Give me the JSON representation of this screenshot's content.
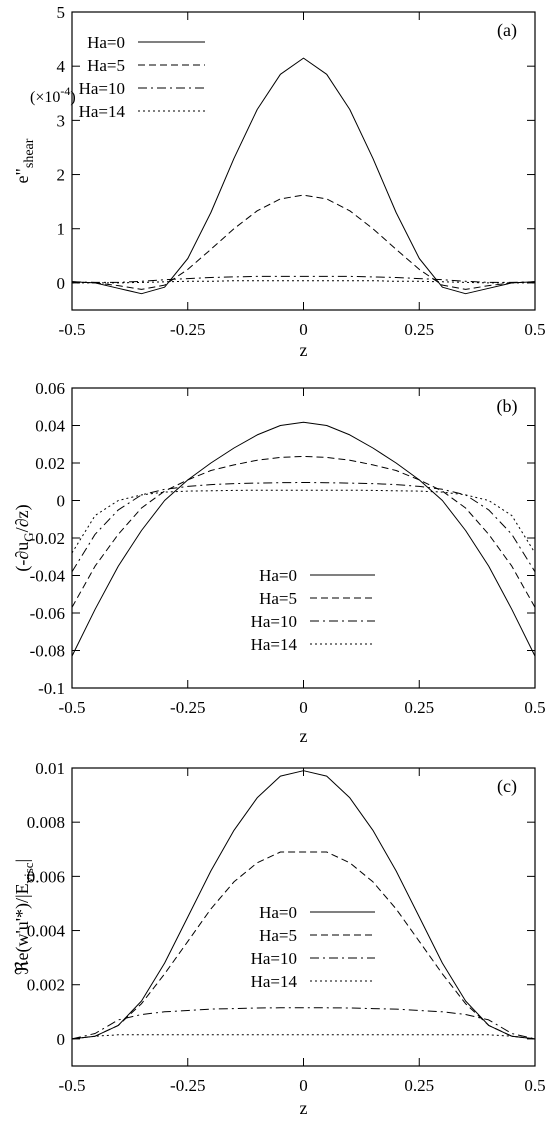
{
  "chart_data": [
    {
      "type": "line",
      "panel_label": "(a)",
      "xlabel": "z",
      "ylabel": "e\"shear",
      "ylabel_main": "e\"",
      "ylabel_sub": "shear",
      "multiplier_label": "(×10",
      "multiplier_exp": "-4",
      "multiplier_close": ")",
      "xlim": [
        -0.5,
        0.5
      ],
      "ylim": [
        -0.5,
        5
      ],
      "xticks": [
        -0.5,
        -0.25,
        0,
        0.25,
        0.5
      ],
      "xtick_labels": [
        "-0.5",
        "-0.25",
        "0",
        "0.25",
        "0.5"
      ],
      "yticks": [
        0,
        1,
        2,
        3,
        4,
        5
      ],
      "ytick_labels": [
        "0",
        "1",
        "2",
        "3",
        "4",
        "5"
      ],
      "legend": "top-left",
      "grid": false,
      "x": [
        -0.5,
        -0.45,
        -0.4,
        -0.35,
        -0.3,
        -0.25,
        -0.2,
        -0.15,
        -0.1,
        -0.05,
        0,
        0.05,
        0.1,
        0.15,
        0.2,
        0.25,
        0.3,
        0.35,
        0.4,
        0.45,
        0.5
      ],
      "series": [
        {
          "name": "Ha=0",
          "values": [
            0.02,
            0.0,
            -0.1,
            -0.2,
            -0.08,
            0.45,
            1.3,
            2.3,
            3.2,
            3.85,
            4.15,
            3.85,
            3.2,
            2.3,
            1.3,
            0.45,
            -0.08,
            -0.2,
            -0.1,
            0.0,
            0.02
          ]
        },
        {
          "name": "Ha=5",
          "values": [
            0.02,
            0.0,
            -0.05,
            -0.12,
            -0.04,
            0.25,
            0.62,
            1.0,
            1.33,
            1.55,
            1.62,
            1.55,
            1.33,
            1.0,
            0.62,
            0.25,
            -0.04,
            -0.12,
            -0.05,
            0.0,
            0.02
          ]
        },
        {
          "name": "Ha=10",
          "values": [
            0.02,
            0.01,
            0.01,
            0.03,
            0.06,
            0.08,
            0.1,
            0.11,
            0.12,
            0.12,
            0.12,
            0.12,
            0.12,
            0.11,
            0.1,
            0.08,
            0.06,
            0.03,
            0.01,
            0.01,
            0.02
          ]
        },
        {
          "name": "Ha=14",
          "values": [
            0.0,
            0.0,
            0.0,
            0.01,
            0.02,
            0.03,
            0.03,
            0.04,
            0.04,
            0.04,
            0.04,
            0.04,
            0.04,
            0.04,
            0.03,
            0.03,
            0.02,
            0.01,
            0.0,
            0.0,
            0.0
          ]
        }
      ]
    },
    {
      "type": "line",
      "panel_label": "(b)",
      "xlabel": "z",
      "ylabel": "(-∂uG/∂z)",
      "ylabel_pre": "(-∂u",
      "ylabel_sub": "G",
      "ylabel_post": "/∂z)",
      "xlim": [
        -0.5,
        0.5
      ],
      "ylim": [
        -0.1,
        0.06
      ],
      "xticks": [
        -0.5,
        -0.25,
        0,
        0.25,
        0.5
      ],
      "xtick_labels": [
        "-0.5",
        "-0.25",
        "0",
        "0.25",
        "0.5"
      ],
      "yticks": [
        -0.1,
        -0.08,
        -0.06,
        -0.04,
        -0.02,
        0,
        0.02,
        0.04,
        0.06
      ],
      "ytick_labels": [
        "-0.1",
        "-0.08",
        "-0.06",
        "-0.04",
        "-0.02",
        "0",
        "0.02",
        "0.04",
        "0.06"
      ],
      "legend": "bottom-center",
      "grid": false,
      "x": [
        -0.5,
        -0.45,
        -0.4,
        -0.35,
        -0.3,
        -0.25,
        -0.2,
        -0.15,
        -0.1,
        -0.05,
        0,
        0.05,
        0.1,
        0.15,
        0.2,
        0.25,
        0.3,
        0.35,
        0.4,
        0.45,
        0.5
      ],
      "series": [
        {
          "name": "Ha=0",
          "values": [
            -0.083,
            -0.058,
            -0.035,
            -0.016,
            0.0,
            0.011,
            0.02,
            0.028,
            0.035,
            0.04,
            0.0417,
            0.04,
            0.035,
            0.028,
            0.02,
            0.011,
            0.0,
            -0.016,
            -0.035,
            -0.058,
            -0.083
          ]
        },
        {
          "name": "Ha=5",
          "values": [
            -0.057,
            -0.035,
            -0.018,
            -0.004,
            0.005,
            0.011,
            0.016,
            0.019,
            0.0215,
            0.023,
            0.0235,
            0.023,
            0.0215,
            0.019,
            0.016,
            0.011,
            0.005,
            -0.004,
            -0.018,
            -0.035,
            -0.057
          ]
        },
        {
          "name": "Ha=10",
          "values": [
            -0.038,
            -0.018,
            -0.005,
            0.003,
            0.006,
            0.0075,
            0.0085,
            0.009,
            0.0093,
            0.0095,
            0.0096,
            0.0095,
            0.0093,
            0.009,
            0.0085,
            0.0075,
            0.006,
            0.003,
            -0.005,
            -0.018,
            -0.038
          ]
        },
        {
          "name": "Ha=14",
          "values": [
            -0.028,
            -0.008,
            0.0,
            0.003,
            0.0045,
            0.005,
            0.0052,
            0.0054,
            0.0055,
            0.0055,
            0.0055,
            0.0055,
            0.0055,
            0.0054,
            0.0052,
            0.005,
            0.0045,
            0.003,
            0.0,
            -0.008,
            -0.028
          ]
        }
      ]
    },
    {
      "type": "line",
      "panel_label": "(c)",
      "xlabel": "z",
      "ylabel": "ℜe(w'u'*)/|Evisc|",
      "ylabel_pre": "ℜe(w'u'*)/|E",
      "ylabel_sub": "visc",
      "ylabel_post": "|",
      "xlim": [
        -0.5,
        0.5
      ],
      "ylim": [
        -0.001,
        0.01
      ],
      "xticks": [
        -0.5,
        -0.25,
        0,
        0.25,
        0.5
      ],
      "xtick_labels": [
        "-0.5",
        "-0.25",
        "0",
        "0.25",
        "0.5"
      ],
      "yticks": [
        0,
        0.002,
        0.004,
        0.006,
        0.008,
        0.01
      ],
      "ytick_labels": [
        "0",
        "0.002",
        "0.004",
        "0.006",
        "0.008",
        "0.01"
      ],
      "legend": "center",
      "grid": false,
      "x": [
        -0.5,
        -0.45,
        -0.4,
        -0.35,
        -0.3,
        -0.25,
        -0.2,
        -0.15,
        -0.1,
        -0.05,
        0,
        0.05,
        0.1,
        0.15,
        0.2,
        0.25,
        0.3,
        0.35,
        0.4,
        0.45,
        0.5
      ],
      "series": [
        {
          "name": "Ha=0",
          "values": [
            0.0,
            0.0001,
            0.0005,
            0.0014,
            0.0028,
            0.0045,
            0.0062,
            0.0077,
            0.0089,
            0.0097,
            0.0099,
            0.0097,
            0.0089,
            0.0077,
            0.0062,
            0.0045,
            0.0028,
            0.0014,
            0.0005,
            0.0001,
            0.0
          ]
        },
        {
          "name": "Ha=5",
          "values": [
            0.0,
            0.0001,
            0.0005,
            0.0013,
            0.0024,
            0.0036,
            0.0048,
            0.0058,
            0.0065,
            0.0069,
            0.0069,
            0.0069,
            0.0065,
            0.0058,
            0.0048,
            0.0036,
            0.0024,
            0.0013,
            0.0005,
            0.0001,
            0.0
          ]
        },
        {
          "name": "Ha=10",
          "values": [
            0.0,
            0.0002,
            0.0007,
            0.0009,
            0.001,
            0.00105,
            0.0011,
            0.00112,
            0.00114,
            0.00115,
            0.00115,
            0.00115,
            0.00114,
            0.00112,
            0.0011,
            0.00105,
            0.001,
            0.0009,
            0.0007,
            0.0002,
            0.0
          ]
        },
        {
          "name": "Ha=14",
          "values": [
            0.0,
            0.0001,
            0.00015,
            0.00015,
            0.00015,
            0.00015,
            0.00015,
            0.00015,
            0.00015,
            0.00015,
            0.00015,
            0.00015,
            0.00015,
            0.00015,
            0.00015,
            0.00015,
            0.00015,
            0.00015,
            0.00015,
            0.0001,
            0.0
          ]
        }
      ]
    }
  ]
}
